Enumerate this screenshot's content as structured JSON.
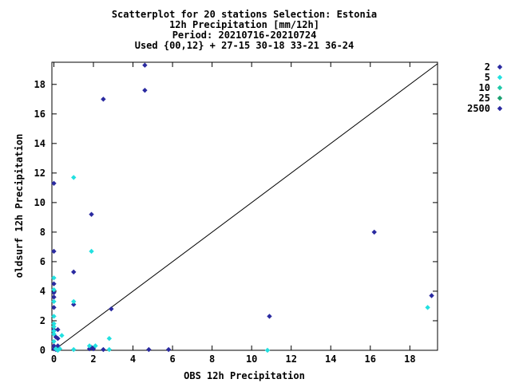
{
  "chart_data": {
    "type": "scatter",
    "title_lines": [
      "Scatterplot for   20 stations Selection: Estonia",
      "12h Precipitation [mm/12h]",
      "Period: 20210716-20210724",
      "Used {00,12} + 27-15 30-18 33-21 36-24"
    ],
    "xlabel": "OBS 12h Precipitation",
    "ylabel": "oldsurf 12h Precipitation",
    "xlim": [
      -0.1,
      19.4
    ],
    "ylim": [
      0,
      19.5
    ],
    "xticks": [
      0,
      2,
      4,
      6,
      8,
      10,
      12,
      14,
      16,
      18
    ],
    "yticks": [
      0,
      2,
      4,
      6,
      8,
      10,
      12,
      14,
      16,
      18
    ],
    "diagonal": true,
    "legend_position": "right",
    "series": [
      {
        "name": "2",
        "color": "#2a2aa0",
        "points": [
          [
            4.6,
            19.3
          ],
          [
            4.6,
            17.6
          ],
          [
            2.5,
            17.0
          ],
          [
            0,
            11.3
          ],
          [
            1.9,
            9.2
          ],
          [
            0,
            6.7
          ],
          [
            1.0,
            5.3
          ],
          [
            0,
            4.5
          ],
          [
            0,
            3.9
          ],
          [
            0,
            3.6
          ],
          [
            0,
            2.9
          ],
          [
            1.0,
            3.1
          ],
          [
            2.9,
            2.8
          ],
          [
            16.2,
            8.0
          ],
          [
            19.1,
            3.7
          ],
          [
            10.9,
            2.3
          ],
          [
            0,
            1.4
          ],
          [
            0.2,
            1.4
          ],
          [
            0.1,
            0.9
          ],
          [
            0.2,
            0.8
          ],
          [
            0.2,
            0.3
          ],
          [
            0,
            0.3
          ],
          [
            0,
            0.1
          ],
          [
            0.1,
            0.05
          ],
          [
            2.0,
            0.1
          ],
          [
            2.5,
            0.05
          ],
          [
            4.8,
            0.05
          ],
          [
            5.8,
            0.05
          ],
          [
            1.9,
            0.2
          ],
          [
            1.8,
            0.1
          ]
        ]
      },
      {
        "name": "5",
        "color": "#22e0e0",
        "points": [
          [
            0,
            4.9
          ],
          [
            0,
            4.1
          ],
          [
            0,
            3.3
          ],
          [
            0,
            2.3
          ],
          [
            0,
            1.8
          ],
          [
            0,
            1.6
          ],
          [
            0,
            1.3
          ],
          [
            0,
            1.1
          ],
          [
            0,
            0.6
          ],
          [
            0.4,
            1.0
          ],
          [
            0.1,
            0.1
          ],
          [
            0.3,
            0.1
          ],
          [
            1.0,
            11.7
          ],
          [
            1.9,
            6.7
          ],
          [
            1.0,
            3.3
          ],
          [
            2.8,
            0.8
          ],
          [
            2.1,
            0.3
          ],
          [
            1.8,
            0.3
          ],
          [
            1.0,
            0.05
          ],
          [
            2.8,
            0.05
          ],
          [
            18.9,
            2.9
          ],
          [
            10.8,
            0.0
          ],
          [
            0.2,
            0.0
          ]
        ]
      },
      {
        "name": "10",
        "color": "#1fc8a8",
        "points": []
      },
      {
        "name": "25",
        "color": "#1aa070",
        "points": []
      },
      {
        "name": "2500",
        "color": "#2a2aa0",
        "points": []
      }
    ]
  }
}
